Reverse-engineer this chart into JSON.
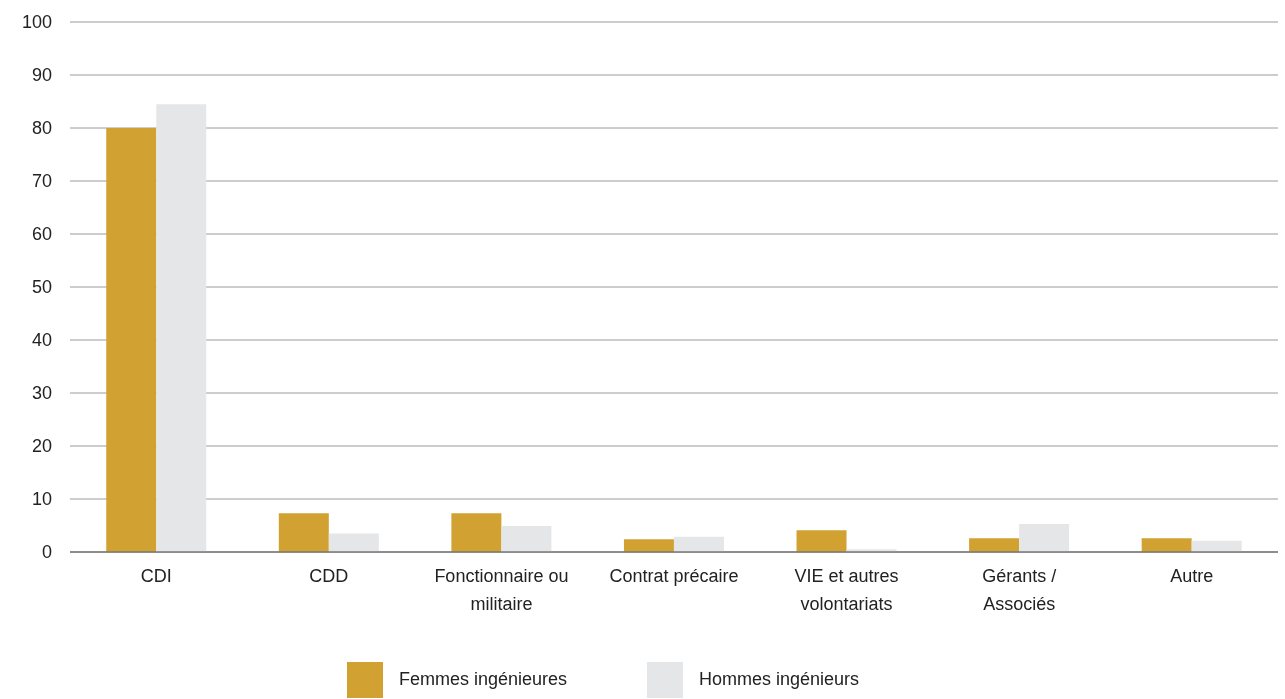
{
  "chart_data": {
    "type": "bar",
    "categories": [
      "CDI",
      "CDD",
      "Fonctionnaire ou militaire",
      "Contrat précaire",
      "VIE et autres volontariats",
      "Gérants / Associés",
      "Autre"
    ],
    "series": [
      {
        "name": "Femmes ingénieures",
        "color": "#d1a232",
        "values": [
          80,
          7.3,
          7.3,
          2.4,
          4.1,
          2.6,
          2.6
        ]
      },
      {
        "name": "Hommes ingénieurs",
        "color": "#e5e6e8",
        "values": [
          84.5,
          3.5,
          4.9,
          2.9,
          0.5,
          5.3,
          2.1
        ]
      }
    ],
    "ylim": [
      0,
      100
    ],
    "yticks": [
      0,
      10,
      20,
      30,
      40,
      50,
      60,
      70,
      80,
      90,
      100
    ],
    "grid": "y",
    "legend": "bottom"
  }
}
